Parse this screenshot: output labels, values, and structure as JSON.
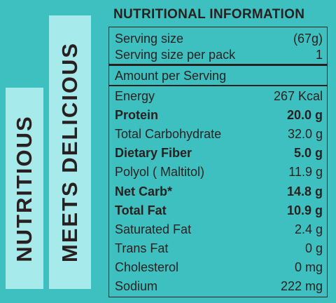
{
  "side_labels": {
    "left": "NUTRITIOUS",
    "right": "MEETS DELICIOUS"
  },
  "panel": {
    "title": "NUTRITIONAL INFORMATION",
    "serving": [
      {
        "label": "Serving size",
        "value": "(67g)"
      },
      {
        "label": "Serving size per pack",
        "value": "1"
      }
    ],
    "amount_header": "Amount per Serving",
    "nutrients": [
      {
        "label": "Energy",
        "value": "267 Kcal",
        "bold": false
      },
      {
        "label": "Protein",
        "value": "20.0 g",
        "bold": true
      },
      {
        "label": "Total Carbohydrate",
        "value": "32.0 g",
        "bold": false
      },
      {
        "label": "Dietary Fiber",
        "value": "5.0 g",
        "bold": true
      },
      {
        "label": "Polyol ( Maltitol)",
        "value": "11.9 g",
        "bold": false
      },
      {
        "label": "Net Carb*",
        "value": "14.8 g",
        "bold": true
      },
      {
        "label": "Total Fat",
        "value": "10.9 g",
        "bold": true
      },
      {
        "label": "Saturated Fat",
        "value": "2.4 g",
        "bold": false
      },
      {
        "label": "Trans Fat",
        "value": "0 g",
        "bold": false
      },
      {
        "label": "Cholesterol",
        "value": "0 mg",
        "bold": false
      },
      {
        "label": "Sodium",
        "value": "222 mg",
        "bold": false
      }
    ]
  }
}
